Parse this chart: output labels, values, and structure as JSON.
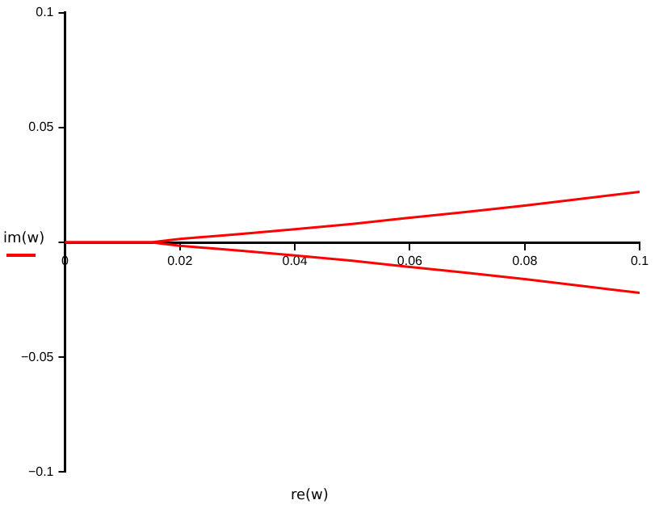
{
  "chart_data": {
    "type": "line",
    "xlabel": "re(w)",
    "ylabel": "im(w)",
    "xlim": [
      0,
      0.1
    ],
    "ylim": [
      -0.1,
      0.1
    ],
    "xticks": [
      0,
      0.02,
      0.04,
      0.06,
      0.08,
      0.1
    ],
    "yticks": [
      -0.1,
      -0.05,
      {
        "value": 0,
        "label": null
      },
      0.05,
      0.1
    ],
    "grid": false,
    "legend": false,
    "marker": "none",
    "line_style": "solid",
    "series": [
      {
        "color": "#ff0000",
        "x": [
          0,
          0.005,
          0.01,
          0.015,
          0.02,
          0.03,
          0.04,
          0.05,
          0.06,
          0.07,
          0.08,
          0.09,
          0.1
        ],
        "values": [
          0,
          0,
          0,
          0,
          0.0015,
          0.0035,
          0.0057,
          0.008,
          0.0107,
          0.0133,
          0.016,
          0.019,
          0.022
        ]
      },
      {
        "color": "#ff0000",
        "x": [
          0,
          0.005,
          0.01,
          0.015,
          0.02,
          0.03,
          0.04,
          0.05,
          0.06,
          0.07,
          0.08,
          0.09,
          0.1
        ],
        "values": [
          0,
          0,
          0,
          0,
          -0.0015,
          -0.0035,
          -0.0057,
          -0.008,
          -0.0107,
          -0.0133,
          -0.016,
          -0.019,
          -0.022
        ]
      }
    ]
  }
}
